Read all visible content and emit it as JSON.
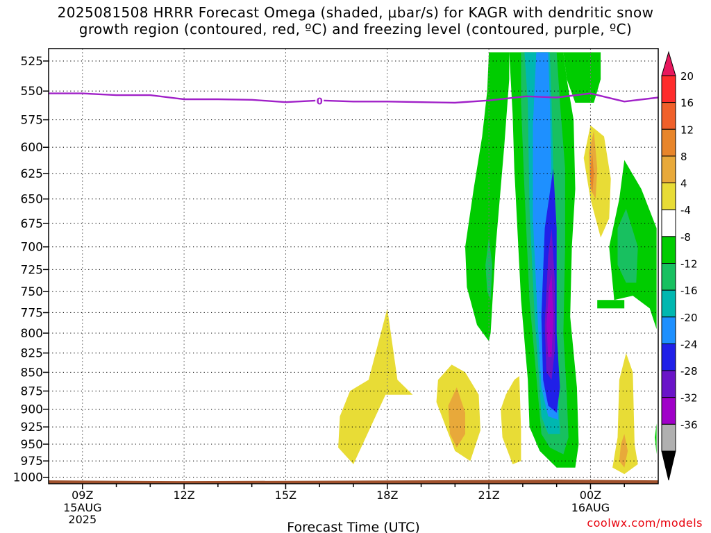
{
  "title": {
    "line1": "2025081508 HRRR Forecast Omega (shaded, μbar/s) for KAGR with dendritic snow",
    "line2": "growth region (contoured, red, ºC) and freezing level (contoured, purple, ºC)"
  },
  "credit": "coolwx.com/models",
  "chart_data": {
    "type": "time-height contour",
    "xlabel": "Forecast Time (UTC)",
    "ylabel": "",
    "x_ticks": [
      {
        "label": "09Z",
        "sub": [
          "15AUG",
          "2025"
        ],
        "hour": 9
      },
      {
        "label": "12Z",
        "sub": [],
        "hour": 12
      },
      {
        "label": "15Z",
        "sub": [],
        "hour": 15
      },
      {
        "label": "18Z",
        "sub": [],
        "hour": 18
      },
      {
        "label": "21Z",
        "sub": [],
        "hour": 21
      },
      {
        "label": "00Z",
        "sub": [
          "16AUG"
        ],
        "hour": 24
      }
    ],
    "xlim_hours": [
      8,
      26
    ],
    "y_ticks": [
      525,
      550,
      575,
      600,
      625,
      650,
      675,
      700,
      725,
      750,
      775,
      800,
      825,
      850,
      875,
      900,
      925,
      950,
      975,
      1000
    ],
    "ylim_mb": [
      515,
      1010
    ],
    "y_scale": "log",
    "grid": true,
    "colorbar": {
      "labels": [
        "20",
        "16",
        "12",
        "8",
        "4",
        "-4",
        "-8",
        "-12",
        "-16",
        "-20",
        "-24",
        "-28",
        "-32",
        "-36"
      ],
      "colors": [
        "#e8175d",
        "#ff2c2c",
        "#f0602a",
        "#e8852a",
        "#e8a93a",
        "#e8dc36",
        "#ffffff",
        "#00cc00",
        "#18c060",
        "#00b7b0",
        "#1e90ff",
        "#2020e8",
        "#6a14c8",
        "#a000c8",
        "#b0b0b0",
        "#000000"
      ]
    },
    "freezing_level": {
      "label": "0",
      "color": "#a020c8",
      "points": [
        [
          8,
          552
        ],
        [
          9,
          552
        ],
        [
          10,
          553.5
        ],
        [
          11,
          553.5
        ],
        [
          12,
          557
        ],
        [
          13,
          557
        ],
        [
          14,
          557.5
        ],
        [
          15,
          559.5
        ],
        [
          16,
          558
        ],
        [
          17,
          559
        ],
        [
          18,
          559
        ],
        [
          19,
          559.5
        ],
        [
          20,
          560
        ],
        [
          21,
          558
        ],
        [
          22.1,
          554.5
        ],
        [
          23,
          555.5
        ],
        [
          24,
          552
        ],
        [
          25,
          559
        ],
        [
          26,
          555.5
        ]
      ]
    },
    "omega_regions": [
      {
        "color": "#00cc00",
        "points": [
          [
            21.0,
            518
          ],
          [
            21.6,
            518
          ],
          [
            21.6,
            540
          ],
          [
            21.45,
            600
          ],
          [
            21.2,
            700
          ],
          [
            21.05,
            800
          ],
          [
            21.0,
            810
          ],
          [
            20.65,
            790
          ],
          [
            20.35,
            745
          ],
          [
            20.3,
            700
          ],
          [
            20.55,
            640
          ],
          [
            20.8,
            590
          ],
          [
            20.95,
            550
          ]
        ]
      },
      {
        "color": "#00cc00",
        "points": [
          [
            21.6,
            518
          ],
          [
            23.2,
            518
          ],
          [
            23.3,
            540
          ],
          [
            23.5,
            575
          ],
          [
            23.55,
            640
          ],
          [
            23.45,
            700
          ],
          [
            23.4,
            780
          ],
          [
            23.6,
            870
          ],
          [
            23.65,
            950
          ],
          [
            23.55,
            985
          ],
          [
            23.0,
            985
          ],
          [
            22.5,
            960
          ],
          [
            22.2,
            925
          ],
          [
            22.15,
            860
          ],
          [
            21.95,
            760
          ],
          [
            21.75,
            620
          ],
          [
            21.7,
            570
          ]
        ]
      },
      {
        "color": "#00cc00",
        "points": [
          [
            23.2,
            518
          ],
          [
            24.3,
            518
          ],
          [
            24.3,
            540
          ],
          [
            24.1,
            560
          ],
          [
            23.55,
            560
          ],
          [
            23.3,
            540
          ]
        ]
      },
      {
        "color": "#00cc00",
        "points": [
          [
            25.0,
            612
          ],
          [
            25.5,
            640
          ],
          [
            25.95,
            680
          ],
          [
            25.95,
            795
          ],
          [
            25.75,
            770
          ],
          [
            25.25,
            755
          ],
          [
            24.7,
            760
          ],
          [
            24.55,
            700
          ],
          [
            24.85,
            650
          ]
        ]
      },
      {
        "color": "#00cc00",
        "points": [
          [
            24.2,
            760
          ],
          [
            25.0,
            760
          ],
          [
            25.0,
            770
          ],
          [
            24.2,
            770
          ]
        ]
      },
      {
        "color": "#00cc00",
        "points": [
          [
            25.95,
            920
          ],
          [
            25.95,
            965
          ],
          [
            25.9,
            940
          ]
        ]
      },
      {
        "color": "#18c060",
        "points": [
          [
            21.0,
            690
          ],
          [
            21.1,
            720
          ],
          [
            21.05,
            760
          ],
          [
            20.95,
            750
          ],
          [
            20.9,
            720
          ]
        ]
      },
      {
        "color": "#18c060",
        "points": [
          [
            21.95,
            518
          ],
          [
            23.0,
            518
          ],
          [
            23.1,
            560
          ],
          [
            23.25,
            620
          ],
          [
            23.25,
            700
          ],
          [
            23.2,
            800
          ],
          [
            23.3,
            880
          ],
          [
            23.35,
            940
          ],
          [
            23.2,
            965
          ],
          [
            22.8,
            955
          ],
          [
            22.55,
            935
          ],
          [
            22.45,
            880
          ],
          [
            22.2,
            760
          ],
          [
            22.05,
            640
          ],
          [
            21.95,
            560
          ]
        ]
      },
      {
        "color": "#18c060",
        "points": [
          [
            25.05,
            660
          ],
          [
            25.4,
            700
          ],
          [
            25.35,
            740
          ],
          [
            25.05,
            740
          ],
          [
            24.8,
            720
          ],
          [
            24.8,
            680
          ]
        ]
      },
      {
        "color": "#00b7b0",
        "points": [
          [
            22.05,
            518
          ],
          [
            22.8,
            518
          ],
          [
            22.85,
            560
          ],
          [
            22.9,
            620
          ],
          [
            22.95,
            700
          ],
          [
            22.95,
            800
          ],
          [
            23.05,
            880
          ],
          [
            23.1,
            935
          ],
          [
            22.75,
            935
          ],
          [
            22.55,
            910
          ],
          [
            22.5,
            870
          ],
          [
            22.35,
            780
          ],
          [
            22.2,
            660
          ],
          [
            22.15,
            560
          ]
        ]
      },
      {
        "color": "#1e90ff",
        "points": [
          [
            22.4,
            518
          ],
          [
            22.75,
            518
          ],
          [
            22.8,
            560
          ],
          [
            22.85,
            640
          ],
          [
            22.9,
            720
          ],
          [
            22.9,
            820
          ],
          [
            23.0,
            880
          ],
          [
            23.05,
            915
          ],
          [
            22.75,
            910
          ],
          [
            22.55,
            870
          ],
          [
            22.45,
            790
          ],
          [
            22.3,
            670
          ],
          [
            22.3,
            580
          ]
        ]
      },
      {
        "color": "#2020e8",
        "points": [
          [
            22.9,
            620
          ],
          [
            23.0,
            680
          ],
          [
            23.0,
            800
          ],
          [
            23.1,
            870
          ],
          [
            23.0,
            905
          ],
          [
            22.75,
            895
          ],
          [
            22.6,
            860
          ],
          [
            22.55,
            780
          ],
          [
            22.65,
            680
          ]
        ]
      },
      {
        "color": "#6a14c8",
        "points": [
          [
            22.85,
            680
          ],
          [
            22.95,
            740
          ],
          [
            22.95,
            820
          ],
          [
            22.85,
            860
          ],
          [
            22.7,
            850
          ],
          [
            22.65,
            790
          ],
          [
            22.75,
            710
          ]
        ]
      },
      {
        "color": "#a000c8",
        "points": [
          [
            22.85,
            730
          ],
          [
            22.9,
            780
          ],
          [
            22.85,
            830
          ],
          [
            22.75,
            830
          ],
          [
            22.7,
            790
          ],
          [
            22.78,
            745
          ]
        ]
      },
      {
        "color": "#e8dc36",
        "points": [
          [
            18.0,
            770
          ],
          [
            18.3,
            860
          ],
          [
            18.75,
            880
          ],
          [
            17.95,
            880
          ],
          [
            17.0,
            980
          ],
          [
            16.55,
            955
          ],
          [
            16.6,
            910
          ],
          [
            16.9,
            875
          ],
          [
            17.45,
            860
          ]
        ]
      },
      {
        "color": "#e8dc36",
        "points": [
          [
            20.3,
            850
          ],
          [
            20.7,
            880
          ],
          [
            20.75,
            930
          ],
          [
            20.45,
            975
          ],
          [
            20.0,
            960
          ],
          [
            19.45,
            890
          ],
          [
            19.5,
            860
          ],
          [
            19.9,
            840
          ]
        ]
      },
      {
        "color": "#e8dc36",
        "points": [
          [
            21.9,
            855
          ],
          [
            21.95,
            930
          ],
          [
            21.95,
            975
          ],
          [
            21.7,
            980
          ],
          [
            21.4,
            940
          ],
          [
            21.35,
            900
          ],
          [
            21.5,
            880
          ],
          [
            21.75,
            860
          ]
        ]
      },
      {
        "color": "#e8dc36",
        "points": [
          [
            24.0,
            580
          ],
          [
            24.4,
            590
          ],
          [
            24.6,
            630
          ],
          [
            24.55,
            670
          ],
          [
            24.3,
            690
          ],
          [
            24.0,
            650
          ],
          [
            23.8,
            610
          ]
        ]
      },
      {
        "color": "#e8dc36",
        "points": [
          [
            25.05,
            825
          ],
          [
            25.25,
            850
          ],
          [
            25.3,
            950
          ],
          [
            25.4,
            980
          ],
          [
            25.0,
            995
          ],
          [
            24.65,
            985
          ],
          [
            24.8,
            940
          ],
          [
            24.85,
            860
          ]
        ]
      },
      {
        "color": "#e8a93a",
        "points": [
          [
            20.05,
            870
          ],
          [
            20.3,
            905
          ],
          [
            20.3,
            935
          ],
          [
            20.05,
            955
          ],
          [
            19.85,
            935
          ],
          [
            19.8,
            895
          ]
        ]
      },
      {
        "color": "#e8a93a",
        "points": [
          [
            24.1,
            585
          ],
          [
            24.2,
            620
          ],
          [
            24.15,
            650
          ],
          [
            24.0,
            640
          ],
          [
            23.95,
            605
          ]
        ]
      },
      {
        "color": "#e8a93a",
        "points": [
          [
            25.0,
            935
          ],
          [
            25.1,
            960
          ],
          [
            25.0,
            985
          ],
          [
            24.85,
            975
          ],
          [
            24.9,
            950
          ]
        ]
      },
      {
        "color": "#e8852a",
        "points": [
          [
            24.05,
            605
          ],
          [
            24.1,
            625
          ],
          [
            24.05,
            645
          ],
          [
            23.98,
            625
          ]
        ]
      }
    ],
    "terrain_color": "#a0522d"
  }
}
